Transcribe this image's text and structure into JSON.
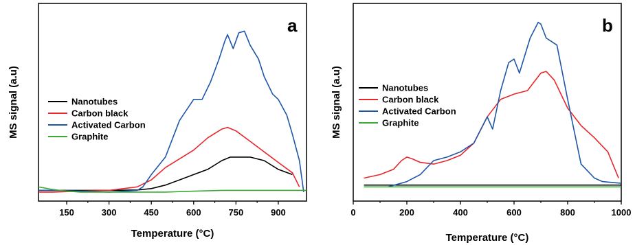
{
  "chart_data": [
    {
      "type": "line",
      "panel_letter": "a",
      "xlabel": "Temperature (°C)",
      "ylabel": "MS signal (a.u)",
      "xlim": [
        50,
        1000
      ],
      "ylim": [
        0,
        100
      ],
      "xticks": [
        150,
        300,
        450,
        600,
        750,
        900
      ],
      "y_tick_labels_shown": false,
      "grid": false,
      "legend_position": "center-left",
      "series": [
        {
          "name": "Nanotubes",
          "color": "#000000",
          "x": [
            50,
            100,
            200,
            300,
            400,
            450,
            500,
            550,
            600,
            650,
            700,
            730,
            750,
            800,
            850,
            900,
            950
          ],
          "y": [
            3,
            3,
            3,
            3,
            3.2,
            4,
            6,
            9,
            12,
            15,
            20,
            22,
            22,
            22,
            20,
            15,
            12
          ]
        },
        {
          "name": "Carbon black",
          "color": "#e8262b",
          "x": [
            50,
            100,
            200,
            300,
            400,
            450,
            500,
            550,
            600,
            650,
            700,
            720,
            750,
            800,
            850,
            900,
            950,
            975
          ],
          "y": [
            2,
            2,
            2.5,
            3,
            5,
            9,
            16,
            21,
            26,
            33,
            38,
            39,
            37,
            31,
            25,
            19,
            13,
            5
          ]
        },
        {
          "name": "Activated Carbon",
          "color": "#1f56a8",
          "x": [
            50,
            100,
            200,
            300,
            400,
            420,
            450,
            500,
            550,
            600,
            630,
            660,
            690,
            710,
            720,
            740,
            760,
            780,
            800,
            830,
            850,
            880,
            900,
            930,
            950,
            975,
            990
          ],
          "y": [
            3,
            3,
            2.5,
            2,
            3,
            5,
            12,
            22,
            43,
            55,
            55,
            65,
            78,
            88,
            92,
            84,
            93,
            94,
            86,
            78,
            68,
            58,
            55,
            46,
            35,
            20,
            2
          ]
        },
        {
          "name": "Graphite",
          "color": "#3aaa35",
          "x": [
            50,
            100,
            150,
            200,
            250,
            300,
            400,
            500,
            600,
            700,
            800,
            900,
            1000
          ],
          "y": [
            5,
            3.5,
            2.5,
            2,
            2,
            2,
            2,
            2,
            2.5,
            3,
            3,
            3,
            3
          ]
        }
      ]
    },
    {
      "type": "line",
      "panel_letter": "b",
      "xlabel": "Temperature (°C)",
      "ylabel": "MS signal (a.u)",
      "xlim": [
        0,
        1000
      ],
      "ylim": [
        0,
        100
      ],
      "xticks": [
        0,
        200,
        400,
        600,
        800,
        1000
      ],
      "y_tick_labels_shown": false,
      "grid": false,
      "legend_position": "center-left",
      "series": [
        {
          "name": "Nanotubes",
          "color": "#000000",
          "x": [
            40,
            100,
            200,
            300,
            400,
            500,
            600,
            700,
            800,
            900,
            1000
          ],
          "y": [
            6,
            6,
            6,
            6,
            6,
            6,
            6,
            6,
            6,
            6,
            6
          ]
        },
        {
          "name": "Carbon black",
          "color": "#e8262b",
          "x": [
            40,
            100,
            150,
            180,
            200,
            220,
            250,
            300,
            350,
            400,
            450,
            500,
            550,
            600,
            650,
            700,
            720,
            750,
            800,
            850,
            900,
            950,
            990
          ],
          "y": [
            10,
            12,
            15,
            20,
            22,
            21,
            19,
            18,
            20,
            23,
            30,
            45,
            55,
            58,
            60,
            70,
            71,
            66,
            50,
            40,
            33,
            25,
            10
          ]
        },
        {
          "name": "Activated Carbon",
          "color": "#1f56a8",
          "x": [
            130,
            200,
            250,
            300,
            350,
            400,
            450,
            500,
            520,
            550,
            580,
            600,
            620,
            640,
            660,
            690,
            700,
            720,
            740,
            760,
            800,
            850,
            900,
            930,
            1000
          ],
          "y": [
            5,
            8,
            12,
            20,
            22,
            25,
            30,
            45,
            38,
            60,
            76,
            78,
            70,
            80,
            90,
            99,
            98,
            90,
            88,
            86,
            55,
            18,
            10,
            8,
            7
          ]
        },
        {
          "name": "Graphite",
          "color": "#3aaa35",
          "x": [
            40,
            200,
            400,
            600,
            800,
            1000
          ],
          "y": [
            5,
            5,
            5,
            5,
            5,
            5
          ]
        }
      ]
    }
  ]
}
